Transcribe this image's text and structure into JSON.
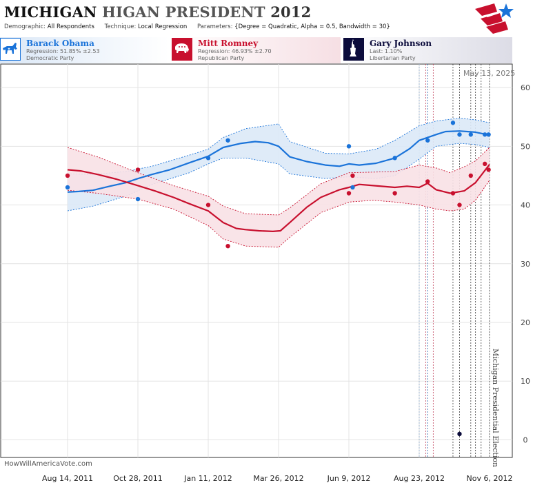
{
  "header": {
    "title_part1": "MICHIGAN",
    "title_part2": "HIGAN PRESIDENT",
    "title_part3": "2012",
    "demographic_label": "Demographic:",
    "demographic_value": "All Respondents",
    "technique_label": "Technique:",
    "technique_value": "Local Regression",
    "parameters_label": "Parameters:",
    "parameters_value": "{Degree = Quadratic, Alpha = 0.5, Bandwidth = 30}"
  },
  "candidates": [
    {
      "name": "Barack Obama",
      "line1": "Regression: 51.85% ±2.53",
      "line2": "Democratic Party",
      "color": "#1a73d9",
      "icon": "donkey-icon"
    },
    {
      "name": "Mitt Romney",
      "line1": "Regression: 46.93% ±2.70",
      "line2": "Republican Party",
      "color": "#c8102e",
      "icon": "elephant-icon"
    },
    {
      "name": "Gary Johnson",
      "line1": "Last: 1.10%",
      "line2": "Libertarian Party",
      "color": "#0b0b3b",
      "icon": "statue-of-liberty-icon"
    }
  ],
  "watermark": "HowWillAmericaVote.com",
  "current_date": "May 13, 2025",
  "event_label": "Michigan Presidential Election",
  "chart_data": {
    "type": "line",
    "x_ticks": [
      "Aug 14, 2011",
      "Oct 28, 2011",
      "Jan 11, 2012",
      "Mar 26, 2012",
      "Jun 9, 2012",
      "Aug 23, 2012",
      "Nov 6, 2012"
    ],
    "y_ticks": [
      0,
      10,
      20,
      30,
      40,
      50,
      60
    ],
    "ylim": [
      -3,
      64
    ],
    "grid": true,
    "series": [
      {
        "name": "Barack Obama",
        "color": "#1a73d9",
        "band_fill": "#dce9f7",
        "line": [
          [
            "2011-08-14",
            42.2
          ],
          [
            "2011-08-26",
            42.3
          ],
          [
            "2011-09-10",
            42.5
          ],
          [
            "2011-09-28",
            43.2
          ],
          [
            "2011-10-15",
            43.8
          ],
          [
            "2011-10-28",
            44.5
          ],
          [
            "2011-11-12",
            45.2
          ],
          [
            "2011-12-01",
            46.0
          ],
          [
            "2011-12-22",
            47.2
          ],
          [
            "2012-01-11",
            48.3
          ],
          [
            "2012-01-27",
            49.8
          ],
          [
            "2012-02-15",
            50.5
          ],
          [
            "2012-03-01",
            50.8
          ],
          [
            "2012-03-15",
            50.6
          ],
          [
            "2012-03-26",
            50.0
          ],
          [
            "2012-04-07",
            48.2
          ],
          [
            "2012-04-25",
            47.4
          ],
          [
            "2012-05-15",
            46.8
          ],
          [
            "2012-05-30",
            46.6
          ],
          [
            "2012-06-09",
            47.0
          ],
          [
            "2012-06-20",
            46.8
          ],
          [
            "2012-07-08",
            47.1
          ],
          [
            "2012-07-28",
            48.0
          ],
          [
            "2012-08-13",
            49.6
          ],
          [
            "2012-08-23",
            51.0
          ],
          [
            "2012-09-10",
            52.0
          ],
          [
            "2012-09-20",
            52.5
          ],
          [
            "2012-10-05",
            52.6
          ],
          [
            "2012-10-22",
            52.4
          ],
          [
            "2012-11-06",
            51.9
          ]
        ],
        "upper": [
          [
            "2011-08-14",
            45.3
          ],
          [
            "2011-09-10",
            45.2
          ],
          [
            "2011-10-15",
            45.7
          ],
          [
            "2011-11-12",
            46.6
          ],
          [
            "2011-12-22",
            48.5
          ],
          [
            "2012-01-11",
            49.5
          ],
          [
            "2012-01-27",
            51.5
          ],
          [
            "2012-02-20",
            53.0
          ],
          [
            "2012-03-26",
            53.8
          ],
          [
            "2012-04-07",
            50.8
          ],
          [
            "2012-05-15",
            48.8
          ],
          [
            "2012-06-09",
            48.7
          ],
          [
            "2012-07-08",
            49.5
          ],
          [
            "2012-07-28",
            51.0
          ],
          [
            "2012-08-23",
            53.5
          ],
          [
            "2012-09-10",
            54.3
          ],
          [
            "2012-10-05",
            54.8
          ],
          [
            "2012-10-22",
            54.5
          ],
          [
            "2012-11-06",
            54.0
          ]
        ],
        "lower": [
          [
            "2011-08-14",
            39.0
          ],
          [
            "2011-09-10",
            39.8
          ],
          [
            "2011-10-15",
            41.5
          ],
          [
            "2011-11-12",
            43.5
          ],
          [
            "2011-12-22",
            45.5
          ],
          [
            "2012-01-11",
            47.0
          ],
          [
            "2012-01-27",
            48.0
          ],
          [
            "2012-02-20",
            48.0
          ],
          [
            "2012-03-26",
            47.0
          ],
          [
            "2012-04-07",
            45.3
          ],
          [
            "2012-05-15",
            44.5
          ],
          [
            "2012-06-09",
            44.8
          ],
          [
            "2012-07-08",
            44.5
          ],
          [
            "2012-07-28",
            45.0
          ],
          [
            "2012-08-23",
            47.8
          ],
          [
            "2012-09-10",
            50.0
          ],
          [
            "2012-10-05",
            50.5
          ],
          [
            "2012-10-22",
            50.3
          ],
          [
            "2012-11-06",
            49.8
          ]
        ],
        "points": [
          [
            "2011-08-14",
            43
          ],
          [
            "2011-10-28",
            41
          ],
          [
            "2012-01-11",
            48
          ],
          [
            "2012-02-01",
            51
          ],
          [
            "2012-06-09",
            50
          ],
          [
            "2012-06-13",
            43
          ],
          [
            "2012-07-28",
            48
          ],
          [
            "2012-09-01",
            51
          ],
          [
            "2012-09-28",
            54
          ],
          [
            "2012-10-05",
            52
          ],
          [
            "2012-10-17",
            52
          ],
          [
            "2012-11-01",
            52
          ],
          [
            "2012-11-05",
            52
          ]
        ]
      },
      {
        "name": "Mitt Romney",
        "color": "#c8102e",
        "band_fill": "#f8e1e6",
        "line": [
          [
            "2011-08-14",
            46.0
          ],
          [
            "2011-08-28",
            45.8
          ],
          [
            "2011-09-15",
            45.2
          ],
          [
            "2011-10-05",
            44.4
          ],
          [
            "2011-10-28",
            43.3
          ],
          [
            "2011-11-15",
            42.4
          ],
          [
            "2011-12-05",
            41.3
          ],
          [
            "2011-12-22",
            40.2
          ],
          [
            "2012-01-11",
            39.0
          ],
          [
            "2012-01-27",
            37.0
          ],
          [
            "2012-02-10",
            36.0
          ],
          [
            "2012-02-20",
            35.8
          ],
          [
            "2012-03-05",
            35.6
          ],
          [
            "2012-03-20",
            35.5
          ],
          [
            "2012-03-28",
            35.6
          ],
          [
            "2012-04-07",
            37.0
          ],
          [
            "2012-04-25",
            39.6
          ],
          [
            "2012-05-10",
            41.3
          ],
          [
            "2012-05-30",
            42.6
          ],
          [
            "2012-06-09",
            43.0
          ],
          [
            "2012-06-20",
            43.5
          ],
          [
            "2012-07-05",
            43.3
          ],
          [
            "2012-07-28",
            43.0
          ],
          [
            "2012-08-10",
            43.2
          ],
          [
            "2012-08-23",
            43.0
          ],
          [
            "2012-09-01",
            43.7
          ],
          [
            "2012-09-10",
            42.6
          ],
          [
            "2012-09-25",
            42.0
          ],
          [
            "2012-10-10",
            42.4
          ],
          [
            "2012-10-22",
            43.8
          ],
          [
            "2012-11-06",
            46.9
          ]
        ],
        "upper": [
          [
            "2011-08-14",
            49.8
          ],
          [
            "2011-09-15",
            48.2
          ],
          [
            "2011-10-28",
            45.5
          ],
          [
            "2011-12-05",
            43.3
          ],
          [
            "2012-01-11",
            41.5
          ],
          [
            "2012-01-27",
            39.8
          ],
          [
            "2012-02-20",
            38.5
          ],
          [
            "2012-03-26",
            38.3
          ],
          [
            "2012-04-07",
            39.5
          ],
          [
            "2012-05-10",
            43.6
          ],
          [
            "2012-06-09",
            45.5
          ],
          [
            "2012-07-05",
            45.6
          ],
          [
            "2012-07-28",
            45.7
          ],
          [
            "2012-08-23",
            46.8
          ],
          [
            "2012-09-10",
            46.3
          ],
          [
            "2012-09-25",
            45.5
          ],
          [
            "2012-10-10",
            46.5
          ],
          [
            "2012-10-22",
            47.5
          ],
          [
            "2012-11-06",
            49.8
          ]
        ],
        "lower": [
          [
            "2011-08-14",
            42.5
          ],
          [
            "2011-09-15",
            42.0
          ],
          [
            "2011-10-28",
            41.0
          ],
          [
            "2011-12-05",
            39.3
          ],
          [
            "2012-01-11",
            36.5
          ],
          [
            "2012-01-27",
            34.2
          ],
          [
            "2012-02-20",
            33.0
          ],
          [
            "2012-03-26",
            32.8
          ],
          [
            "2012-04-07",
            34.5
          ],
          [
            "2012-05-10",
            38.7
          ],
          [
            "2012-06-09",
            40.5
          ],
          [
            "2012-07-05",
            40.8
          ],
          [
            "2012-07-28",
            40.5
          ],
          [
            "2012-08-23",
            40.0
          ],
          [
            "2012-09-10",
            39.3
          ],
          [
            "2012-09-25",
            39.0
          ],
          [
            "2012-10-10",
            39.3
          ],
          [
            "2012-10-22",
            40.8
          ],
          [
            "2012-11-06",
            44.2
          ]
        ],
        "points": [
          [
            "2011-08-14",
            45
          ],
          [
            "2011-10-28",
            46
          ],
          [
            "2012-01-11",
            40
          ],
          [
            "2012-02-01",
            33
          ],
          [
            "2012-06-09",
            42
          ],
          [
            "2012-06-13",
            45
          ],
          [
            "2012-07-28",
            42
          ],
          [
            "2012-09-01",
            44
          ],
          [
            "2012-09-28",
            42
          ],
          [
            "2012-10-05",
            40
          ],
          [
            "2012-10-17",
            45
          ],
          [
            "2012-11-01",
            47
          ],
          [
            "2012-11-05",
            46
          ]
        ]
      },
      {
        "name": "Gary Johnson",
        "color": "#0b0b3b",
        "points": [
          [
            "2012-10-05",
            1
          ]
        ]
      }
    ],
    "poll_markers": [
      {
        "date": "2012-08-23",
        "color": "#8aa9c9"
      },
      {
        "date": "2012-08-30",
        "color": "#c0405a"
      },
      {
        "date": "2012-09-01",
        "color": "#1a5aa8"
      },
      {
        "date": "2012-09-07",
        "color": "#c0405a"
      },
      {
        "date": "2012-09-28",
        "color": "#333333"
      },
      {
        "date": "2012-10-05",
        "color": "#333333"
      },
      {
        "date": "2012-10-17",
        "color": "#333333"
      },
      {
        "date": "2012-10-22",
        "color": "#333333"
      },
      {
        "date": "2012-10-28",
        "color": "#333333"
      },
      {
        "date": "2012-11-06",
        "color": "#333333"
      }
    ]
  }
}
